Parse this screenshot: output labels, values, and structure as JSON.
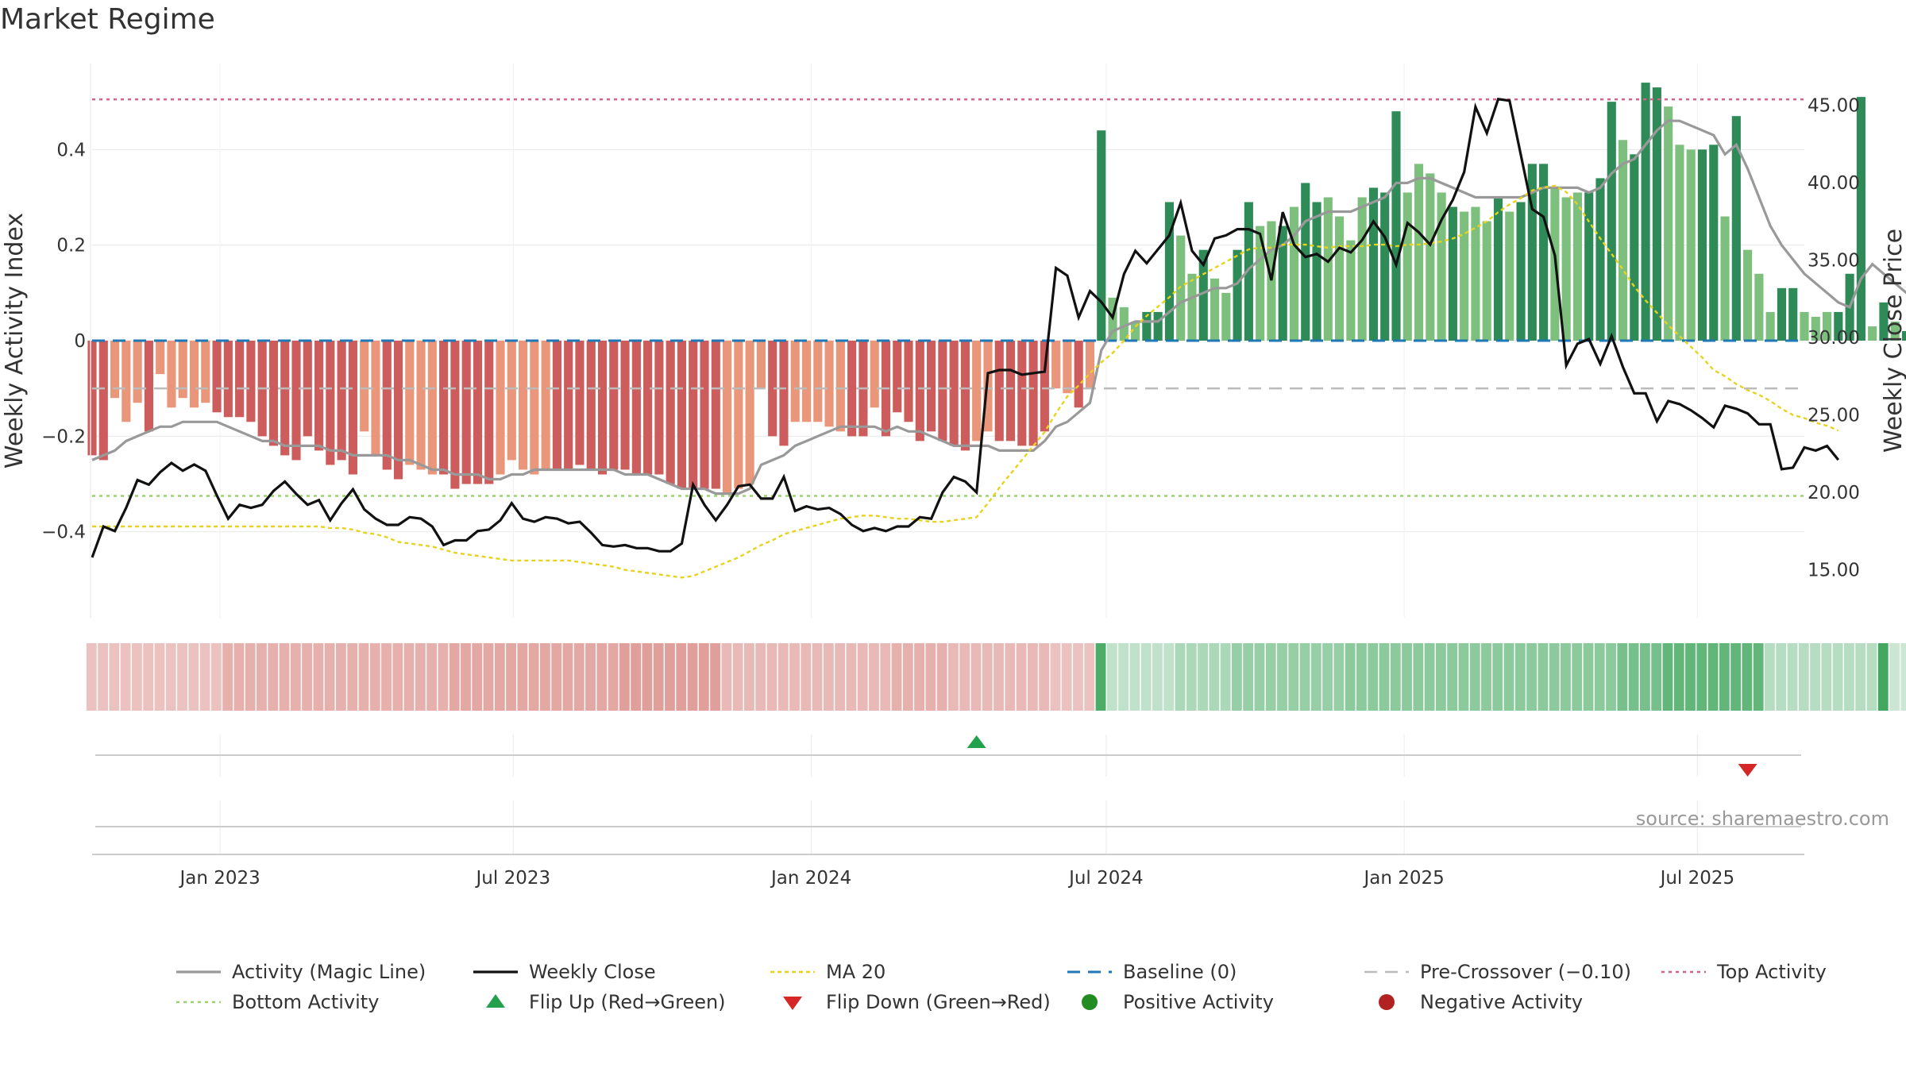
{
  "title": "Market Regime",
  "source_note": "source: sharemaestro.com",
  "colors": {
    "pos_dark": "#2e8b57",
    "pos_light": "#7dbf7d",
    "neg_dark": "#cd5c5c",
    "neg_light": "#e9967a",
    "magic_line": "#999999",
    "close": "#111111",
    "ma20": "#e6d31e",
    "baseline": "#1f77b4",
    "precross": "#bbbbbb",
    "top": "#d6608a",
    "bottom": "#99d46b",
    "flip_up": "#22a04b",
    "flip_down": "#d62728",
    "positive_dot": "#228b22",
    "negative_dot": "#b22222"
  },
  "chart_data": {
    "type": "bar",
    "ylabel_left": "Weekly Activity Index",
    "ylabel_right": "Weekly Close Price",
    "ylim_left": [
      -0.58,
      0.58
    ],
    "yticks_left": [
      {
        "v": 0.4,
        "t": "0.4"
      },
      {
        "v": 0.2,
        "t": "0.2"
      },
      {
        "v": 0,
        "t": "0"
      },
      {
        "v": -0.2,
        "t": "−0.2"
      },
      {
        "v": -0.4,
        "t": "−0.4"
      }
    ],
    "ylim_right": [
      11.9,
      47.7
    ],
    "yticks_right": [
      {
        "v": 45,
        "t": "45.00"
      },
      {
        "v": 40,
        "t": "40.00"
      },
      {
        "v": 35,
        "t": "35.00"
      },
      {
        "v": 30,
        "t": "30.00"
      },
      {
        "v": 25,
        "t": "25.00"
      },
      {
        "v": 20,
        "t": "20.00"
      },
      {
        "v": 15,
        "t": "15.00"
      }
    ],
    "x_start": "2022-10-14",
    "x_end": "2025-09-05",
    "xticks": [
      {
        "date": "2023-01-01",
        "label": "Jan 2023"
      },
      {
        "date": "2023-07-01",
        "label": "Jul 2023"
      },
      {
        "date": "2024-01-01",
        "label": "Jan 2024"
      },
      {
        "date": "2024-07-01",
        "label": "Jul 2024"
      },
      {
        "date": "2025-01-01",
        "label": "Jan 2025"
      },
      {
        "date": "2025-07-01",
        "label": "Jul 2025"
      }
    ],
    "reference_lines": {
      "top_activity": 0.505,
      "bottom_activity": -0.325,
      "baseline": 0,
      "pre_crossover": -0.1
    },
    "activity": [
      -0.24,
      -0.25,
      -0.12,
      -0.17,
      -0.13,
      -0.19,
      -0.07,
      -0.14,
      -0.12,
      -0.14,
      -0.13,
      -0.15,
      -0.16,
      -0.16,
      -0.17,
      -0.2,
      -0.22,
      -0.24,
      -0.25,
      -0.2,
      -0.23,
      -0.26,
      -0.25,
      -0.28,
      -0.19,
      -0.24,
      -0.27,
      -0.29,
      -0.26,
      -0.27,
      -0.28,
      -0.28,
      -0.31,
      -0.3,
      -0.3,
      -0.3,
      -0.28,
      -0.25,
      -0.27,
      -0.28,
      -0.27,
      -0.27,
      -0.27,
      -0.26,
      -0.27,
      -0.28,
      -0.27,
      -0.27,
      -0.28,
      -0.28,
      -0.28,
      -0.3,
      -0.31,
      -0.31,
      -0.31,
      -0.31,
      -0.32,
      -0.31,
      -0.3,
      -0.1,
      -0.2,
      -0.22,
      -0.17,
      -0.17,
      -0.17,
      -0.18,
      -0.19,
      -0.2,
      -0.2,
      -0.14,
      -0.2,
      -0.15,
      -0.17,
      -0.21,
      -0.19,
      -0.21,
      -0.22,
      -0.23,
      -0.21,
      -0.19,
      -0.21,
      -0.21,
      -0.22,
      -0.22,
      -0.19,
      -0.1,
      -0.11,
      -0.14,
      -0.1,
      0.44,
      0.09,
      0.07,
      0.04,
      0.06,
      0.06,
      0.29,
      0.22,
      0.14,
      0.19,
      0.13,
      0.1,
      0.19,
      0.29,
      0.24,
      0.25,
      0.24,
      0.28,
      0.33,
      0.29,
      0.3,
      0.26,
      0.21,
      0.3,
      0.32,
      0.31,
      0.48,
      0.31,
      0.37,
      0.35,
      0.31,
      0.28,
      0.27,
      0.28,
      0.25,
      0.3,
      0.27,
      0.29,
      0.37,
      0.37,
      0.32,
      0.3,
      0.31,
      0.31,
      0.34,
      0.5,
      0.42,
      0.39,
      0.54,
      0.53,
      0.49,
      0.41,
      0.4,
      0.4,
      0.41,
      0.26,
      0.47,
      0.19,
      0.14,
      0.06,
      0.11,
      0.11,
      0.06,
      0.05,
      0.06,
      0.06,
      0.14,
      0.51,
      0.03,
      0.08,
      0.04,
      0.02,
      -0.02,
      -0.06,
      -0.06,
      -0.13,
      -0.01,
      -0.02,
      -0.06,
      -0.08,
      -0.08,
      -0.06
    ],
    "shade": [
      1,
      1,
      0,
      0,
      0,
      1,
      0,
      0,
      0,
      0,
      0,
      1,
      1,
      1,
      1,
      1,
      1,
      1,
      1,
      1,
      1,
      1,
      1,
      1,
      0,
      0,
      1,
      1,
      0,
      0,
      0,
      1,
      1,
      1,
      1,
      1,
      0,
      0,
      0,
      0,
      0,
      1,
      1,
      1,
      1,
      1,
      1,
      1,
      1,
      1,
      1,
      1,
      1,
      1,
      1,
      1,
      0,
      0,
      0,
      0,
      1,
      1,
      0,
      0,
      0,
      0,
      0,
      1,
      1,
      0,
      1,
      1,
      1,
      1,
      1,
      1,
      1,
      1,
      0,
      0,
      1,
      1,
      1,
      1,
      1,
      0,
      0,
      1,
      0,
      1,
      0,
      0,
      0,
      1,
      1,
      1,
      0,
      0,
      1,
      0,
      0,
      1,
      1,
      0,
      0,
      1,
      0,
      1,
      1,
      0,
      0,
      0,
      0,
      1,
      1,
      1,
      0,
      0,
      0,
      0,
      1,
      0,
      0,
      0,
      1,
      0,
      1,
      1,
      1,
      0,
      0,
      0,
      1,
      1,
      1,
      0,
      1,
      1,
      1,
      0,
      0,
      0,
      1,
      1,
      0,
      1,
      0,
      0,
      0,
      1,
      1,
      0,
      0,
      0,
      1,
      1,
      1,
      0,
      1,
      0,
      1,
      0,
      0,
      0,
      0,
      1,
      1,
      1,
      1,
      0,
      0
    ],
    "magic_line": [
      -0.25,
      -0.24,
      -0.23,
      -0.21,
      -0.2,
      -0.19,
      -0.18,
      -0.18,
      -0.17,
      -0.17,
      -0.17,
      -0.17,
      -0.18,
      -0.19,
      -0.2,
      -0.21,
      -0.21,
      -0.22,
      -0.22,
      -0.22,
      -0.22,
      -0.23,
      -0.23,
      -0.24,
      -0.24,
      -0.24,
      -0.24,
      -0.25,
      -0.25,
      -0.26,
      -0.27,
      -0.27,
      -0.28,
      -0.28,
      -0.28,
      -0.29,
      -0.29,
      -0.28,
      -0.28,
      -0.27,
      -0.27,
      -0.27,
      -0.27,
      -0.27,
      -0.27,
      -0.27,
      -0.27,
      -0.28,
      -0.28,
      -0.28,
      -0.29,
      -0.3,
      -0.31,
      -0.31,
      -0.31,
      -0.32,
      -0.32,
      -0.32,
      -0.31,
      -0.26,
      -0.25,
      -0.24,
      -0.22,
      -0.21,
      -0.2,
      -0.19,
      -0.18,
      -0.18,
      -0.18,
      -0.18,
      -0.19,
      -0.18,
      -0.19,
      -0.19,
      -0.2,
      -0.21,
      -0.22,
      -0.22,
      -0.22,
      -0.22,
      -0.23,
      -0.23,
      -0.23,
      -0.23,
      -0.21,
      -0.18,
      -0.17,
      -0.15,
      -0.13,
      -0.02,
      0.02,
      0.03,
      0.04,
      0.04,
      0.04,
      0.06,
      0.08,
      0.09,
      0.1,
      0.11,
      0.11,
      0.12,
      0.15,
      0.17,
      0.19,
      0.2,
      0.22,
      0.25,
      0.26,
      0.27,
      0.27,
      0.27,
      0.28,
      0.29,
      0.3,
      0.33,
      0.33,
      0.34,
      0.34,
      0.33,
      0.32,
      0.31,
      0.3,
      0.3,
      0.3,
      0.3,
      0.3,
      0.31,
      0.32,
      0.32,
      0.32,
      0.32,
      0.31,
      0.32,
      0.35,
      0.37,
      0.38,
      0.41,
      0.44,
      0.46,
      0.46,
      0.45,
      0.44,
      0.43,
      0.39,
      0.41,
      0.36,
      0.3,
      0.24,
      0.2,
      0.17,
      0.14,
      0.12,
      0.1,
      0.08,
      0.07,
      0.13,
      0.16,
      0.14,
      0.12,
      0.1,
      0.07,
      0.04,
      0.01,
      -0.02,
      -0.03,
      -0.03,
      -0.04,
      -0.04,
      -0.05,
      -0.05
    ],
    "close": [
      15.8,
      17.8,
      17.5,
      19.0,
      20.8,
      20.5,
      21.3,
      21.9,
      21.4,
      21.8,
      21.4,
      19.8,
      18.3,
      19.2,
      19.0,
      19.2,
      20.1,
      20.7,
      19.9,
      19.2,
      19.5,
      18.2,
      19.3,
      20.2,
      18.9,
      18.3,
      17.9,
      17.9,
      18.4,
      18.3,
      17.8,
      16.6,
      16.9,
      16.9,
      17.5,
      17.6,
      18.2,
      19.3,
      18.3,
      18.1,
      18.4,
      18.3,
      18.0,
      18.1,
      17.4,
      16.6,
      16.5,
      16.6,
      16.4,
      16.4,
      16.2,
      16.2,
      16.7,
      20.5,
      19.2,
      18.2,
      19.2,
      20.4,
      20.5,
      19.6,
      19.6,
      21.0,
      18.8,
      19.1,
      18.9,
      19.0,
      18.6,
      17.9,
      17.5,
      17.7,
      17.5,
      17.8,
      17.8,
      18.4,
      18.3,
      20.0,
      21.0,
      20.7,
      20.0,
      27.7,
      27.9,
      27.9,
      27.6,
      27.7,
      27.8,
      34.5,
      34.0,
      31.3,
      33.0,
      32.3,
      31.3,
      34.1,
      35.6,
      34.8,
      35.7,
      36.6,
      38.7,
      35.6,
      34.7,
      36.4,
      36.6,
      37.0,
      37.0,
      36.7,
      33.7,
      38.1,
      36.0,
      35.2,
      35.4,
      34.9,
      35.8,
      35.5,
      36.3,
      37.5,
      36.5,
      34.7,
      37.4,
      36.8,
      36.0,
      37.6,
      38.9,
      40.7,
      44.9,
      43.2,
      45.4,
      45.3,
      41.8,
      38.3,
      37.8,
      35.3,
      28.2,
      29.6,
      29.9,
      28.3,
      30.1,
      28.1,
      26.4,
      26.4,
      24.6,
      25.9,
      25.7,
      25.3,
      24.8,
      24.2,
      25.6,
      25.4,
      25.1,
      24.4,
      24.4,
      21.5,
      21.6,
      22.9,
      22.7,
      23.0,
      22.1
    ],
    "ma20": [
      17.8,
      17.8,
      17.8,
      17.8,
      17.8,
      17.8,
      17.8,
      17.8,
      17.8,
      17.8,
      17.8,
      17.8,
      17.8,
      17.8,
      17.8,
      17.8,
      17.8,
      17.8,
      17.8,
      17.8,
      17.8,
      17.7,
      17.7,
      17.6,
      17.4,
      17.3,
      17.1,
      16.8,
      16.7,
      16.6,
      16.5,
      16.3,
      16.1,
      16.0,
      15.9,
      15.8,
      15.7,
      15.6,
      15.6,
      15.6,
      15.6,
      15.6,
      15.6,
      15.5,
      15.4,
      15.3,
      15.2,
      15.0,
      14.9,
      14.8,
      14.7,
      14.6,
      14.5,
      14.6,
      14.9,
      15.2,
      15.5,
      15.8,
      16.2,
      16.6,
      16.9,
      17.3,
      17.5,
      17.7,
      17.9,
      18.1,
      18.3,
      18.4,
      18.5,
      18.5,
      18.4,
      18.3,
      18.3,
      18.2,
      18.1,
      18.1,
      18.2,
      18.3,
      18.4,
      19.3,
      20.3,
      21.2,
      22.1,
      23.0,
      23.9,
      25.1,
      26.2,
      26.9,
      27.7,
      28.4,
      29.0,
      29.8,
      30.7,
      31.4,
      32.0,
      32.6,
      33.3,
      33.7,
      34.1,
      34.5,
      34.9,
      35.3,
      35.7,
      35.8,
      35.8,
      36.0,
      36.0,
      36.0,
      35.9,
      35.8,
      35.9,
      35.9,
      35.9,
      36.0,
      36.0,
      35.9,
      36.0,
      36.0,
      36.1,
      36.2,
      36.4,
      36.7,
      37.1,
      37.5,
      38.1,
      38.6,
      39.0,
      39.5,
      39.7,
      39.8,
      39.4,
      38.6,
      37.5,
      36.4,
      35.4,
      34.4,
      33.3,
      32.4,
      31.6,
      30.8,
      30.1,
      29.4,
      28.7,
      27.9,
      27.5,
      27.0,
      26.6,
      26.3,
      25.9,
      25.4,
      25.0,
      24.8,
      24.5,
      24.3,
      24.0
    ],
    "regime_strip": [
      0.35,
      0.35,
      0.35,
      0.35,
      0.35,
      0.35,
      0.35,
      0.35,
      0.35,
      0.35,
      0.35,
      0.35,
      0.45,
      0.45,
      0.45,
      0.45,
      0.45,
      0.45,
      0.45,
      0.45,
      0.45,
      0.45,
      0.45,
      0.45,
      0.45,
      0.45,
      0.45,
      0.45,
      0.45,
      0.45,
      0.45,
      0.45,
      0.5,
      0.5,
      0.5,
      0.5,
      0.5,
      0.5,
      0.5,
      0.5,
      0.5,
      0.5,
      0.5,
      0.5,
      0.5,
      0.5,
      0.5,
      0.55,
      0.55,
      0.55,
      0.55,
      0.55,
      0.55,
      0.55,
      0.55,
      0.55,
      0.4,
      0.4,
      0.4,
      0.4,
      0.4,
      0.4,
      0.4,
      0.4,
      0.4,
      0.4,
      0.4,
      0.4,
      0.4,
      0.4,
      0.4,
      0.45,
      0.45,
      0.45,
      0.45,
      0.45,
      0.4,
      0.4,
      0.4,
      0.4,
      0.4,
      0.4,
      0.4,
      0.4,
      0.4,
      0.35,
      0.35,
      0.35,
      0.35,
      0.85,
      0.3,
      0.3,
      0.3,
      0.3,
      0.3,
      0.3,
      0.4,
      0.4,
      0.4,
      0.4,
      0.4,
      0.5,
      0.5,
      0.5,
      0.5,
      0.5,
      0.5,
      0.5,
      0.5,
      0.5,
      0.5,
      0.55,
      0.55,
      0.55,
      0.55,
      0.55,
      0.55,
      0.55,
      0.55,
      0.55,
      0.55,
      0.55,
      0.55,
      0.55,
      0.55,
      0.55,
      0.55,
      0.55,
      0.55,
      0.55,
      0.55,
      0.55,
      0.55,
      0.55,
      0.55,
      0.65,
      0.65,
      0.65,
      0.65,
      0.75,
      0.75,
      0.75,
      0.75,
      0.75,
      0.75,
      0.75,
      0.75,
      0.75,
      0.35,
      0.35,
      0.35,
      0.35,
      0.35,
      0.35,
      0.35,
      0.35,
      0.35,
      0.35,
      0.9,
      0.25,
      0.25,
      0.25,
      0.25,
      0.25,
      0.25,
      0.25,
      0.25,
      0.25,
      0.25,
      0.25,
      0.25,
      0.25,
      0.25
    ],
    "flip_up": [
      "2024-04-12"
    ],
    "flip_down": [
      "2025-08-01"
    ],
    "legend": [
      "Activity (Magic Line)",
      "Weekly Close",
      "MA 20",
      "Baseline (0)",
      "Pre-Crossover (−0.10)",
      "Top Activity",
      "Bottom Activity",
      "Flip Up (Red→Green)",
      "Flip Down (Green→Red)",
      "Positive Activity",
      "Negative Activity"
    ]
  }
}
